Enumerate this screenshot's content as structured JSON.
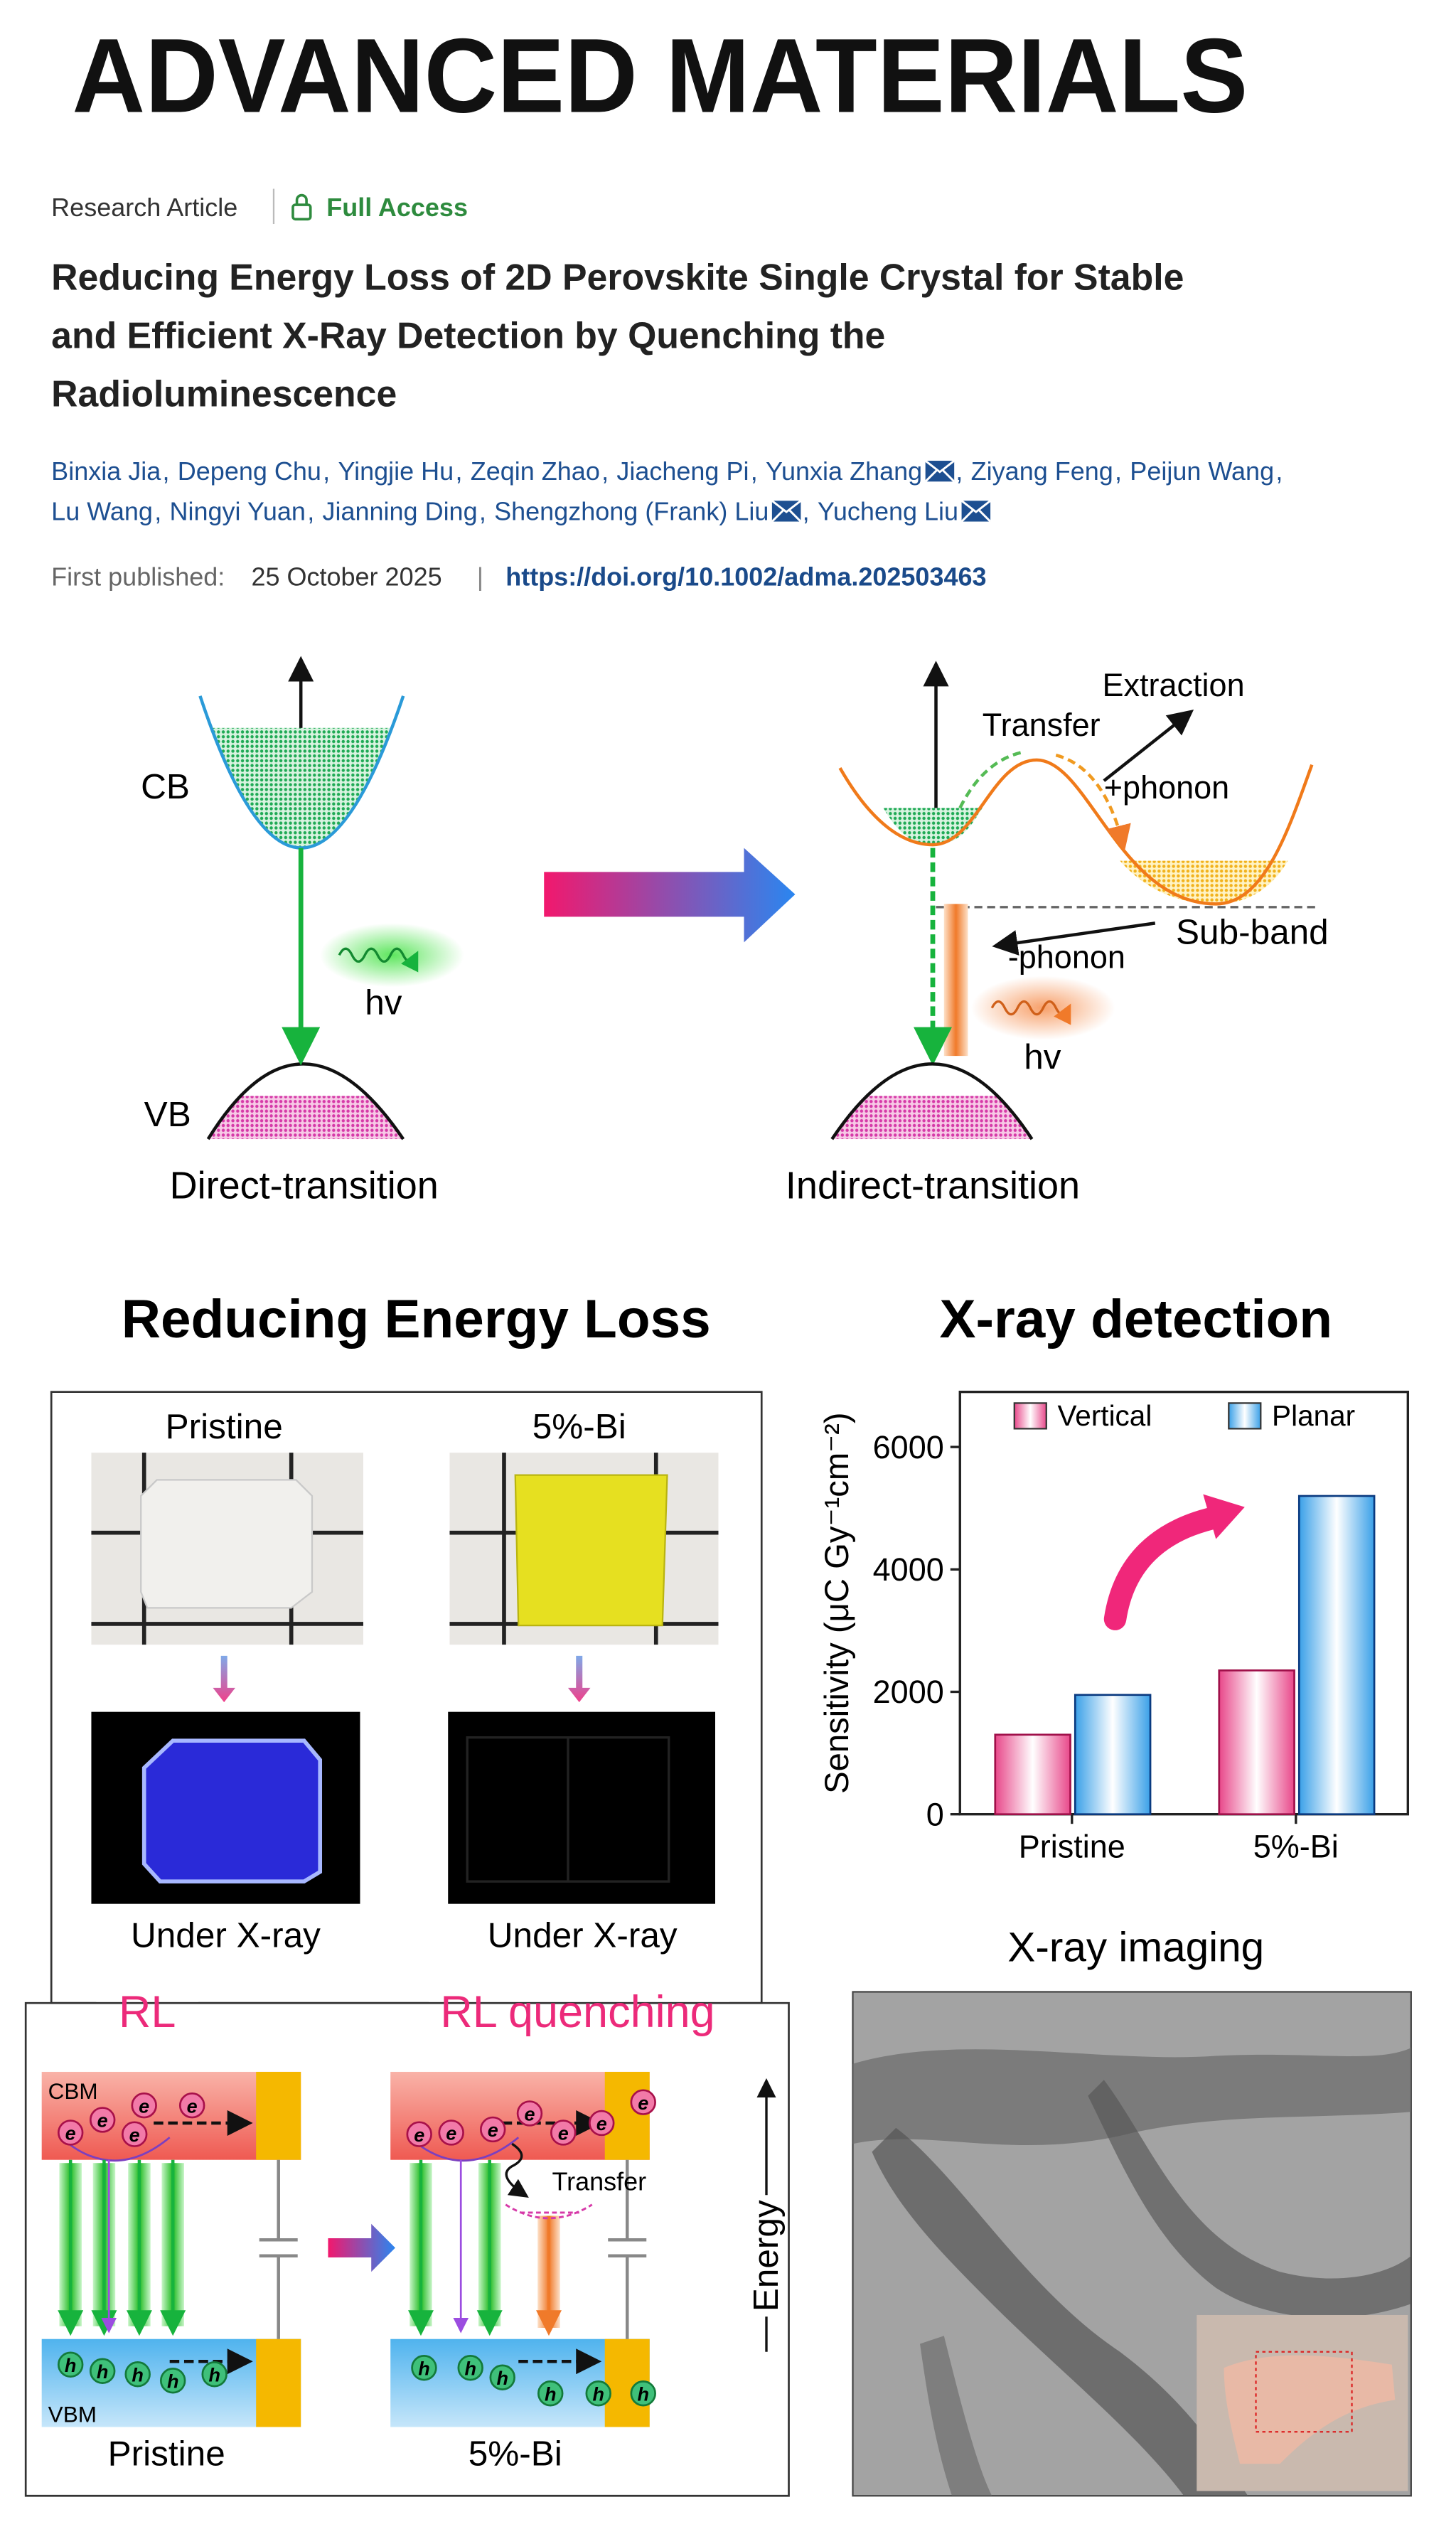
{
  "header": {
    "journal": "ADVANCED MATERIALS",
    "article_type": "Research Article",
    "access": "Full Access",
    "title_lines": [
      "Reducing Energy Loss of 2D Perovskite Single Crystal for Stable",
      "and Efficient X-Ray Detection by Quenching the",
      "Radioluminescence"
    ],
    "authors": [
      {
        "name": "Binxia Jia"
      },
      {
        "name": "Depeng Chu"
      },
      {
        "name": "Yingjie Hu"
      },
      {
        "name": "Zeqin Zhao"
      },
      {
        "name": "Jiacheng Pi"
      },
      {
        "name": "Yunxia Zhang",
        "corresponding": true
      },
      {
        "name": "Ziyang Feng"
      },
      {
        "name": "Peijun Wang"
      },
      {
        "name": "Lu Wang"
      },
      {
        "name": "Ningyi Yuan"
      },
      {
        "name": "Jianning Ding"
      },
      {
        "name": "Shengzhong (Frank) Liu",
        "corresponding": true
      },
      {
        "name": "Yucheng Liu",
        "corresponding": true
      }
    ],
    "author_separator": ",",
    "published_label": "First published:",
    "published_date": "25 October 2025",
    "doi_separator": "|",
    "doi": "https://doi.org/10.1002/adma.202503463"
  },
  "figure": {
    "band_diagram": {
      "cb": "CB",
      "vb": "VB",
      "hv_left": "hv",
      "direct": "Direct-transition",
      "indirect": "Indirect-transition",
      "transfer": "Transfer",
      "extraction": "Extraction",
      "plus_phonon": "+phonon",
      "minus_phonon": "-phonon",
      "sub_band": "Sub-band",
      "hv_right": "hv"
    },
    "energy_loss": {
      "title": "Reducing Energy Loss",
      "samples": [
        {
          "name": "Pristine",
          "caption": "Under X-ray"
        },
        {
          "name": "5%-Bi",
          "caption": "Under X-ray"
        }
      ],
      "rl": "RL",
      "rl_quenching": "RL quenching",
      "cbm": "CBM",
      "vbm": "VBM",
      "electron": "e",
      "hole": "h",
      "transfer": "Transfer",
      "energy": "Energy",
      "bottom_labels": [
        "Pristine",
        "5%-Bi"
      ]
    },
    "chart": {
      "type": "bar",
      "title": "X-ray detection",
      "ylabel": "Sensitivity (μC Gy⁻¹cm⁻²)",
      "categories": [
        "Pristine",
        "5%-Bi"
      ],
      "series": [
        {
          "name": "Vertical",
          "color": "#e8488a",
          "values": [
            1300,
            2350
          ]
        },
        {
          "name": "Planar",
          "color": "#3aa0e8",
          "values": [
            1950,
            5200
          ]
        }
      ],
      "ylim": [
        0,
        6900
      ],
      "yticks": [
        0,
        2000,
        4000,
        6000
      ],
      "legend": "top"
    },
    "imaging": {
      "title": "X-ray imaging"
    }
  }
}
